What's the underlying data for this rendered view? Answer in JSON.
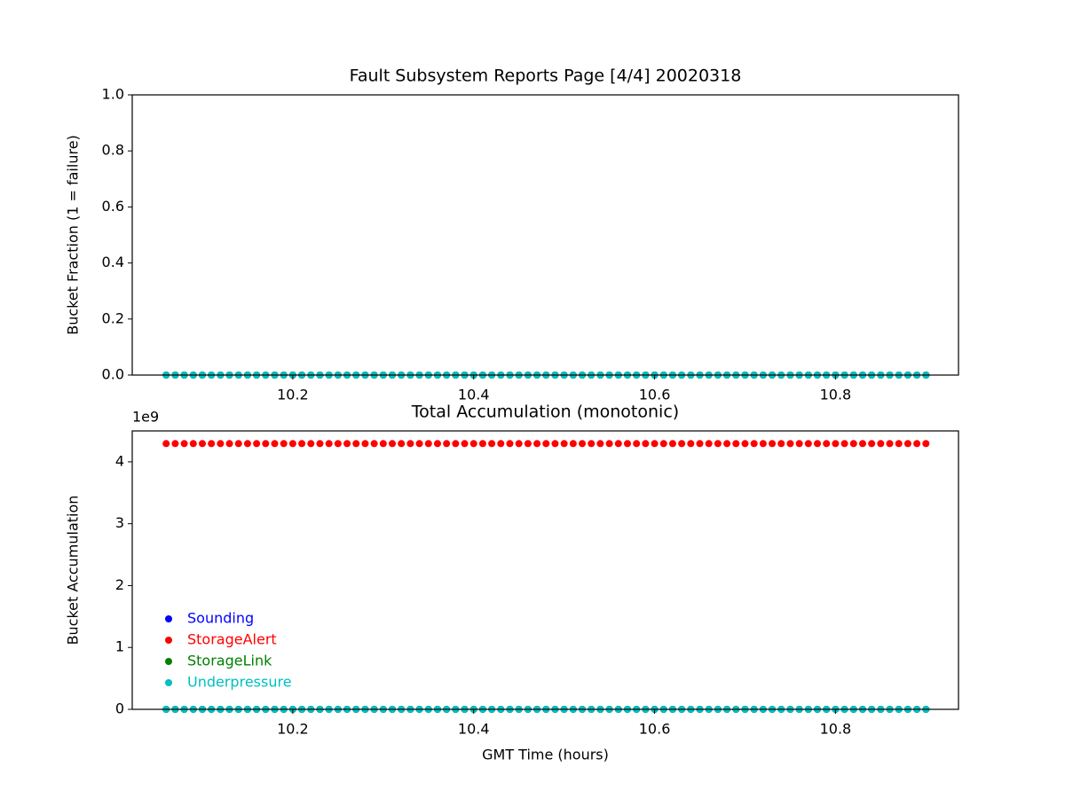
{
  "chart_data": [
    {
      "type": "scatter",
      "title": "Fault Subsystem Reports Page [4/4] 20020318",
      "y_label": "Bucket Fraction (1 = failure)",
      "x": [
        10.06,
        10.07,
        10.08,
        10.09,
        10.1,
        10.11,
        10.12,
        10.13,
        10.14,
        10.15,
        10.16,
        10.17,
        10.18,
        10.19,
        10.2,
        10.21,
        10.22,
        10.23,
        10.24,
        10.25,
        10.26,
        10.27,
        10.28,
        10.29,
        10.3,
        10.31,
        10.32,
        10.33,
        10.34,
        10.35,
        10.36,
        10.37,
        10.38,
        10.39,
        10.4,
        10.41,
        10.42,
        10.43,
        10.44,
        10.45,
        10.46,
        10.47,
        10.48,
        10.49,
        10.5,
        10.51,
        10.52,
        10.53,
        10.54,
        10.55,
        10.56,
        10.57,
        10.58,
        10.59,
        10.6,
        10.61,
        10.62,
        10.63,
        10.64,
        10.65,
        10.66,
        10.67,
        10.68,
        10.69,
        10.7,
        10.71,
        10.72,
        10.73,
        10.74,
        10.75,
        10.76,
        10.77,
        10.78,
        10.79,
        10.8,
        10.81,
        10.82,
        10.83,
        10.84,
        10.85,
        10.86,
        10.87,
        10.88,
        10.89,
        10.9
      ],
      "series": [
        {
          "name": "Sounding",
          "color": "#0000ff",
          "values": [
            0,
            0,
            0,
            0,
            0,
            0,
            0,
            0,
            0,
            0,
            0,
            0,
            0,
            0,
            0,
            0,
            0,
            0,
            0,
            0,
            0,
            0,
            0,
            0,
            0,
            0,
            0,
            0,
            0,
            0,
            0,
            0,
            0,
            0,
            0,
            0,
            0,
            0,
            0,
            0,
            0,
            0,
            0,
            0,
            0,
            0,
            0,
            0,
            0,
            0,
            0,
            0,
            0,
            0,
            0,
            0,
            0,
            0,
            0,
            0,
            0,
            0,
            0,
            0,
            0,
            0,
            0,
            0,
            0,
            0,
            0,
            0,
            0,
            0,
            0,
            0,
            0,
            0,
            0,
            0,
            0,
            0,
            0,
            0,
            0
          ]
        },
        {
          "name": "StorageAlert",
          "color": "#ff0000",
          "values": [
            0,
            0,
            0,
            0,
            0,
            0,
            0,
            0,
            0,
            0,
            0,
            0,
            0,
            0,
            0,
            0,
            0,
            0,
            0,
            0,
            0,
            0,
            0,
            0,
            0,
            0,
            0,
            0,
            0,
            0,
            0,
            0,
            0,
            0,
            0,
            0,
            0,
            0,
            0,
            0,
            0,
            0,
            0,
            0,
            0,
            0,
            0,
            0,
            0,
            0,
            0,
            0,
            0,
            0,
            0,
            0,
            0,
            0,
            0,
            0,
            0,
            0,
            0,
            0,
            0,
            0,
            0,
            0,
            0,
            0,
            0,
            0,
            0,
            0,
            0,
            0,
            0,
            0,
            0,
            0,
            0,
            0,
            0,
            0,
            0
          ]
        },
        {
          "name": "StorageLink",
          "color": "#008000",
          "values": [
            0,
            0,
            0,
            0,
            0,
            0,
            0,
            0,
            0,
            0,
            0,
            0,
            0,
            0,
            0,
            0,
            0,
            0,
            0,
            0,
            0,
            0,
            0,
            0,
            0,
            0,
            0,
            0,
            0,
            0,
            0,
            0,
            0,
            0,
            0,
            0,
            0,
            0,
            0,
            0,
            0,
            0,
            0,
            0,
            0,
            0,
            0,
            0,
            0,
            0,
            0,
            0,
            0,
            0,
            0,
            0,
            0,
            0,
            0,
            0,
            0,
            0,
            0,
            0,
            0,
            0,
            0,
            0,
            0,
            0,
            0,
            0,
            0,
            0,
            0,
            0,
            0,
            0,
            0,
            0,
            0,
            0,
            0,
            0,
            0
          ]
        },
        {
          "name": "Underpressure",
          "color": "#00bfbf",
          "values": [
            0,
            0,
            0,
            0,
            0,
            0,
            0,
            0,
            0,
            0,
            0,
            0,
            0,
            0,
            0,
            0,
            0,
            0,
            0,
            0,
            0,
            0,
            0,
            0,
            0,
            0,
            0,
            0,
            0,
            0,
            0,
            0,
            0,
            0,
            0,
            0,
            0,
            0,
            0,
            0,
            0,
            0,
            0,
            0,
            0,
            0,
            0,
            0,
            0,
            0,
            0,
            0,
            0,
            0,
            0,
            0,
            0,
            0,
            0,
            0,
            0,
            0,
            0,
            0,
            0,
            0,
            0,
            0,
            0,
            0,
            0,
            0,
            0,
            0,
            0,
            0,
            0,
            0,
            0,
            0,
            0,
            0,
            0,
            0,
            0
          ]
        }
      ],
      "xlim": [
        10.0225,
        10.936
      ],
      "xticks": [
        10.2,
        10.4,
        10.6,
        10.8
      ],
      "ylim": [
        0,
        1
      ],
      "yticks": [
        {
          "value": 0,
          "label": "0.0"
        },
        0.2,
        0.4,
        0.6,
        0.8,
        {
          "value": 1,
          "label": "1.0"
        }
      ]
    },
    {
      "type": "scatter",
      "title": "Total Accumulation (monotonic)",
      "y_label": "Bucket Accumulation",
      "x_label": "GMT Time (hours)",
      "y_offset_label": "1e9",
      "legend": "lower left",
      "x": [
        10.06,
        10.07,
        10.08,
        10.09,
        10.1,
        10.11,
        10.12,
        10.13,
        10.14,
        10.15,
        10.16,
        10.17,
        10.18,
        10.19,
        10.2,
        10.21,
        10.22,
        10.23,
        10.24,
        10.25,
        10.26,
        10.27,
        10.28,
        10.29,
        10.3,
        10.31,
        10.32,
        10.33,
        10.34,
        10.35,
        10.36,
        10.37,
        10.38,
        10.39,
        10.4,
        10.41,
        10.42,
        10.43,
        10.44,
        10.45,
        10.46,
        10.47,
        10.48,
        10.49,
        10.5,
        10.51,
        10.52,
        10.53,
        10.54,
        10.55,
        10.56,
        10.57,
        10.58,
        10.59,
        10.6,
        10.61,
        10.62,
        10.63,
        10.64,
        10.65,
        10.66,
        10.67,
        10.68,
        10.69,
        10.7,
        10.71,
        10.72,
        10.73,
        10.74,
        10.75,
        10.76,
        10.77,
        10.78,
        10.79,
        10.8,
        10.81,
        10.82,
        10.83,
        10.84,
        10.85,
        10.86,
        10.87,
        10.88,
        10.89,
        10.9
      ],
      "series": [
        {
          "name": "Sounding",
          "color": "#0000ff",
          "values": [
            0,
            0,
            0,
            0,
            0,
            0,
            0,
            0,
            0,
            0,
            0,
            0,
            0,
            0,
            0,
            0,
            0,
            0,
            0,
            0,
            0,
            0,
            0,
            0,
            0,
            0,
            0,
            0,
            0,
            0,
            0,
            0,
            0,
            0,
            0,
            0,
            0,
            0,
            0,
            0,
            0,
            0,
            0,
            0,
            0,
            0,
            0,
            0,
            0,
            0,
            0,
            0,
            0,
            0,
            0,
            0,
            0,
            0,
            0,
            0,
            0,
            0,
            0,
            0,
            0,
            0,
            0,
            0,
            0,
            0,
            0,
            0,
            0,
            0,
            0,
            0,
            0,
            0,
            0,
            0,
            0,
            0,
            0,
            0,
            0
          ]
        },
        {
          "name": "StorageAlert",
          "color": "#ff0000",
          "values": [
            4294967295,
            4294967295,
            4294967295,
            4294967295,
            4294967295,
            4294967295,
            4294967295,
            4294967295,
            4294967295,
            4294967295,
            4294967295,
            4294967295,
            4294967295,
            4294967295,
            4294967295,
            4294967295,
            4294967295,
            4294967295,
            4294967295,
            4294967295,
            4294967295,
            4294967295,
            4294967295,
            4294967295,
            4294967295,
            4294967295,
            4294967295,
            4294967295,
            4294967295,
            4294967295,
            4294967295,
            4294967295,
            4294967295,
            4294967295,
            4294967295,
            4294967295,
            4294967295,
            4294967295,
            4294967295,
            4294967295,
            4294967295,
            4294967295,
            4294967295,
            4294967295,
            4294967295,
            4294967295,
            4294967295,
            4294967295,
            4294967295,
            4294967295,
            4294967295,
            4294967295,
            4294967295,
            4294967295,
            4294967295,
            4294967295,
            4294967295,
            4294967295,
            4294967295,
            4294967295,
            4294967295,
            4294967295,
            4294967295,
            4294967295,
            4294967295,
            4294967295,
            4294967295,
            4294967295,
            4294967295,
            4294967295,
            4294967295,
            4294967295,
            4294967295,
            4294967295,
            4294967295,
            4294967295,
            4294967295,
            4294967295,
            4294967295,
            4294967295,
            4294967295,
            4294967295,
            4294967295,
            4294967295,
            4294967295
          ]
        },
        {
          "name": "StorageLink",
          "color": "#008000",
          "values": [
            0,
            0,
            0,
            0,
            0,
            0,
            0,
            0,
            0,
            0,
            0,
            0,
            0,
            0,
            0,
            0,
            0,
            0,
            0,
            0,
            0,
            0,
            0,
            0,
            0,
            0,
            0,
            0,
            0,
            0,
            0,
            0,
            0,
            0,
            0,
            0,
            0,
            0,
            0,
            0,
            0,
            0,
            0,
            0,
            0,
            0,
            0,
            0,
            0,
            0,
            0,
            0,
            0,
            0,
            0,
            0,
            0,
            0,
            0,
            0,
            0,
            0,
            0,
            0,
            0,
            0,
            0,
            0,
            0,
            0,
            0,
            0,
            0,
            0,
            0,
            0,
            0,
            0,
            0,
            0,
            0,
            0,
            0,
            0,
            0
          ]
        },
        {
          "name": "Underpressure",
          "color": "#00bfbf",
          "values": [
            0,
            0,
            0,
            0,
            0,
            0,
            0,
            0,
            0,
            0,
            0,
            0,
            0,
            0,
            0,
            0,
            0,
            0,
            0,
            0,
            0,
            0,
            0,
            0,
            0,
            0,
            0,
            0,
            0,
            0,
            0,
            0,
            0,
            0,
            0,
            0,
            0,
            0,
            0,
            0,
            0,
            0,
            0,
            0,
            0,
            0,
            0,
            0,
            0,
            0,
            0,
            0,
            0,
            0,
            0,
            0,
            0,
            0,
            0,
            0,
            0,
            0,
            0,
            0,
            0,
            0,
            0,
            0,
            0,
            0,
            0,
            0,
            0,
            0,
            0,
            0,
            0,
            0,
            0,
            0,
            0,
            0,
            0,
            0,
            0
          ]
        }
      ],
      "xlim": [
        10.0225,
        10.936
      ],
      "xticks": [
        10.2,
        10.4,
        10.6,
        10.8
      ],
      "ylim": [
        0,
        4500000000
      ],
      "yticks": [
        0,
        {
          "value": 1000000000,
          "label": "1"
        },
        {
          "value": 2000000000,
          "label": "2"
        },
        {
          "value": 3000000000,
          "label": "3"
        },
        {
          "value": 4000000000,
          "label": "4"
        }
      ]
    }
  ]
}
